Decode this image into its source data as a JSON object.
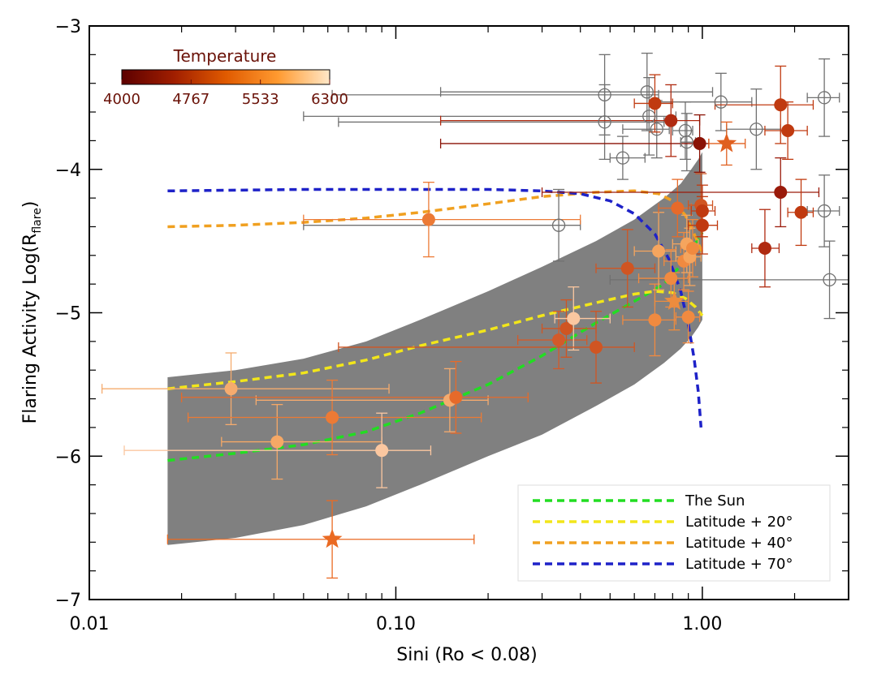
{
  "chart_data": {
    "type": "scatter",
    "title": "",
    "xlabel": "Sini (Ro < 0.08)",
    "ylabel_main": "Flaring Activity Log(R",
    "ylabel_sub": "flare",
    "ylabel_close": ")",
    "x_scale": "log",
    "xlim": [
      0.01,
      3.0
    ],
    "ylim": [
      -7,
      -3
    ],
    "x_ticks": [
      {
        "value": 0.01,
        "label": "0.01"
      },
      {
        "value": 0.1,
        "label": "0.10"
      },
      {
        "value": 1.0,
        "label": "1.00"
      }
    ],
    "y_ticks": [
      {
        "value": -3,
        "label": "−3"
      },
      {
        "value": -4,
        "label": "−4"
      },
      {
        "value": -5,
        "label": "−5"
      },
      {
        "value": -6,
        "label": "−6"
      },
      {
        "value": -7,
        "label": "−7"
      }
    ],
    "colorbar": {
      "title": "Temperature",
      "ticks": [
        "4000",
        "4767",
        "5533",
        "6300"
      ],
      "range": [
        4000,
        6300
      ],
      "colors": [
        "#5c0000",
        "#a01e00",
        "#e05a00",
        "#ff9a30",
        "#ffe8c8"
      ]
    },
    "band": {
      "x": [
        0.018,
        0.03,
        0.05,
        0.08,
        0.12,
        0.2,
        0.3,
        0.45,
        0.6,
        0.75,
        0.85,
        0.92,
        0.97,
        1.0
      ],
      "upper": [
        -5.45,
        -5.4,
        -5.32,
        -5.2,
        -5.05,
        -4.85,
        -4.68,
        -4.5,
        -4.35,
        -4.2,
        -4.1,
        -4.0,
        -3.93,
        -3.88
      ],
      "lower": [
        -6.62,
        -6.57,
        -6.48,
        -6.35,
        -6.2,
        -6.0,
        -5.85,
        -5.65,
        -5.5,
        -5.35,
        -5.25,
        -5.17,
        -5.1,
        -5.05
      ]
    },
    "series": [
      {
        "name": "The Sun",
        "color": "#22dd22",
        "x": [
          0.018,
          0.03,
          0.05,
          0.08,
          0.12,
          0.2,
          0.3,
          0.45,
          0.6,
          0.75,
          0.85,
          0.93,
          1.0
        ],
        "y": [
          -6.03,
          -5.98,
          -5.92,
          -5.83,
          -5.7,
          -5.5,
          -5.3,
          -5.07,
          -4.92,
          -4.8,
          -4.67,
          -4.55,
          -4.44
        ]
      },
      {
        "name": "Latitude + 20°",
        "color": "#f2e61a",
        "x": [
          0.018,
          0.03,
          0.05,
          0.08,
          0.12,
          0.2,
          0.3,
          0.45,
          0.6,
          0.7,
          0.8,
          0.88,
          0.95,
          1.0
        ],
        "y": [
          -5.53,
          -5.48,
          -5.42,
          -5.33,
          -5.23,
          -5.12,
          -5.02,
          -4.93,
          -4.87,
          -4.85,
          -4.86,
          -4.9,
          -4.96,
          -5.02
        ]
      },
      {
        "name": "Latitude + 40°",
        "color": "#f0a020",
        "x": [
          0.018,
          0.03,
          0.05,
          0.08,
          0.12,
          0.2,
          0.3,
          0.45,
          0.6,
          0.72,
          0.8,
          0.88,
          0.94,
          1.0
        ],
        "y": [
          -4.4,
          -4.39,
          -4.37,
          -4.34,
          -4.3,
          -4.24,
          -4.19,
          -4.16,
          -4.15,
          -4.17,
          -4.22,
          -4.32,
          -4.45,
          -4.58
        ]
      },
      {
        "name": "Latitude + 70°",
        "color": "#1e22c8",
        "x": [
          0.018,
          0.05,
          0.1,
          0.2,
          0.3,
          0.4,
          0.5,
          0.6,
          0.7,
          0.78,
          0.85,
          0.9,
          0.94,
          0.97,
          0.99
        ],
        "y": [
          -4.15,
          -4.14,
          -4.14,
          -4.14,
          -4.15,
          -4.17,
          -4.22,
          -4.31,
          -4.45,
          -4.63,
          -4.85,
          -5.08,
          -5.32,
          -5.55,
          -5.8
        ]
      }
    ],
    "points": [
      {
        "x": 0.029,
        "y": -5.53,
        "xlo": 0.011,
        "xhi": 0.095,
        "yerr": 0.25,
        "color": "#f5ab6e",
        "shape": "circle"
      },
      {
        "x": 0.041,
        "y": -5.9,
        "xlo": 0.027,
        "xhi": 0.09,
        "yerr": 0.26,
        "color": "#f5a866",
        "shape": "circle"
      },
      {
        "x": 0.062,
        "y": -5.73,
        "xlo": 0.021,
        "xhi": 0.19,
        "yerr": 0.26,
        "color": "#ec7a35",
        "shape": "circle"
      },
      {
        "x": 0.09,
        "y": -5.96,
        "xlo": 0.013,
        "xhi": 0.13,
        "yerr": 0.26,
        "color": "#fbc7a0",
        "shape": "circle"
      },
      {
        "x": 0.062,
        "y": -6.58,
        "xlo": 0.018,
        "xhi": 0.18,
        "yerr": 0.27,
        "color": "#ea6a22",
        "shape": "star"
      },
      {
        "x": 0.128,
        "y": -4.35,
        "xlo": 0.05,
        "xhi": 0.4,
        "yerr": 0.26,
        "color": "#ec7a35",
        "shape": "circle"
      },
      {
        "x": 0.15,
        "y": -5.61,
        "xlo": 0.035,
        "xhi": 0.2,
        "yerr": 0.22,
        "color": "#f5ab6e",
        "shape": "circle"
      },
      {
        "x": 0.157,
        "y": -5.59,
        "xlo": 0.02,
        "xhi": 0.27,
        "yerr": 0.25,
        "color": "#e66a2a",
        "shape": "circle"
      },
      {
        "x": 0.34,
        "y": -5.19,
        "xlo": 0.25,
        "xhi": 0.42,
        "yerr": 0.2,
        "color": "#d35a2a",
        "shape": "circle"
      },
      {
        "x": 0.36,
        "y": -5.11,
        "xlo": 0.3,
        "xhi": 0.45,
        "yerr": 0.2,
        "color": "#d05522",
        "shape": "circle"
      },
      {
        "x": 0.38,
        "y": -5.04,
        "xlo": 0.33,
        "xhi": 0.5,
        "yerr": 0.22,
        "color": "#fbc7a0",
        "shape": "circle"
      },
      {
        "x": 0.45,
        "y": -5.24,
        "xlo": 0.065,
        "xhi": 0.6,
        "yerr": 0.25,
        "color": "#d05522",
        "shape": "circle"
      },
      {
        "x": 0.57,
        "y": -4.69,
        "xlo": 0.45,
        "xhi": 0.7,
        "yerr": 0.27,
        "color": "#d05522",
        "shape": "circle"
      },
      {
        "x": 0.7,
        "y": -5.05,
        "xlo": 0.55,
        "xhi": 0.82,
        "yerr": 0.25,
        "color": "#f08a40",
        "shape": "circle"
      },
      {
        "x": 0.72,
        "y": -4.57,
        "xlo": 0.6,
        "xhi": 0.82,
        "yerr": 0.27,
        "color": "#f5a55e",
        "shape": "circle"
      },
      {
        "x": 0.79,
        "y": -4.76,
        "xlo": 0.62,
        "xhi": 0.9,
        "yerr": 0.2,
        "color": "#f08a40",
        "shape": "circle"
      },
      {
        "x": 0.81,
        "y": -4.92,
        "xlo": 0.7,
        "xhi": 0.9,
        "yerr": 0.2,
        "color": "#ed8c3e",
        "shape": "star"
      },
      {
        "x": 0.83,
        "y": -4.27,
        "xlo": 0.72,
        "xhi": 0.92,
        "yerr": 0.2,
        "color": "#e66a2a",
        "shape": "circle"
      },
      {
        "x": 0.87,
        "y": -4.64,
        "xlo": 0.75,
        "xhi": 0.95,
        "yerr": 0.2,
        "color": "#f08a40",
        "shape": "circle"
      },
      {
        "x": 0.89,
        "y": -4.52,
        "xlo": 0.8,
        "xhi": 0.97,
        "yerr": 0.2,
        "color": "#f5a55e",
        "shape": "circle"
      },
      {
        "x": 0.91,
        "y": -4.61,
        "xlo": 0.82,
        "xhi": 0.99,
        "yerr": 0.2,
        "color": "#f5a55e",
        "shape": "circle"
      },
      {
        "x": 0.9,
        "y": -5.03,
        "xlo": 0.82,
        "xhi": 0.98,
        "yerr": 0.18,
        "color": "#f08a40",
        "shape": "circle"
      },
      {
        "x": 0.93,
        "y": -4.55,
        "xlo": 0.85,
        "xhi": 1.0,
        "yerr": 0.2,
        "color": "#f08a40",
        "shape": "circle"
      },
      {
        "x": 0.99,
        "y": -4.25,
        "xlo": 0.9,
        "xhi": 1.08,
        "yerr": 0.22,
        "color": "#d05522",
        "shape": "circle"
      },
      {
        "x": 1.0,
        "y": -4.39,
        "xlo": 0.9,
        "xhi": 1.12,
        "yerr": 0.2,
        "color": "#c03a10",
        "shape": "circle"
      },
      {
        "x": 1.0,
        "y": -4.29,
        "xlo": 0.92,
        "xhi": 1.1,
        "yerr": 0.18,
        "color": "#c03a10",
        "shape": "circle"
      },
      {
        "x": 0.7,
        "y": -3.54,
        "xlo": 0.6,
        "xhi": 0.8,
        "yerr": 0.2,
        "color": "#c03a10",
        "shape": "circle"
      },
      {
        "x": 0.79,
        "y": -3.66,
        "xlo": 0.14,
        "xhi": 0.98,
        "yerr": 0.25,
        "color": "#b02a10",
        "shape": "circle"
      },
      {
        "x": 0.98,
        "y": -3.82,
        "xlo": 0.14,
        "xhi": 1.05,
        "yerr": 0.2,
        "color": "#8a1205",
        "shape": "circle"
      },
      {
        "x": 1.2,
        "y": -3.82,
        "xlo": 1.05,
        "xhi": 1.38,
        "yerr": 0.15,
        "color": "#e06020",
        "shape": "star"
      },
      {
        "x": 1.8,
        "y": -3.55,
        "xlo": 1.1,
        "xhi": 2.3,
        "yerr": 0.27,
        "color": "#c03a10",
        "shape": "circle"
      },
      {
        "x": 1.9,
        "y": -3.73,
        "xlo": 1.6,
        "xhi": 2.2,
        "yerr": 0.2,
        "color": "#c03a10",
        "shape": "circle"
      },
      {
        "x": 1.8,
        "y": -4.16,
        "xlo": 0.3,
        "xhi": 2.4,
        "yerr": 0.24,
        "color": "#9a1a0a",
        "shape": "circle"
      },
      {
        "x": 2.1,
        "y": -4.3,
        "xlo": 1.9,
        "xhi": 2.3,
        "yerr": 0.23,
        "color": "#c03a10",
        "shape": "circle"
      },
      {
        "x": 1.6,
        "y": -4.55,
        "xlo": 1.45,
        "xhi": 1.78,
        "yerr": 0.27,
        "color": "#b02a10",
        "shape": "circle"
      }
    ],
    "open_points": [
      {
        "x": 0.48,
        "y": -3.48,
        "xlo": 0.062,
        "xhi": 0.72,
        "yerr": 0.28
      },
      {
        "x": 0.66,
        "y": -3.46,
        "xlo": 0.14,
        "xhi": 1.08,
        "yerr": 0.27
      },
      {
        "x": 0.67,
        "y": -3.63,
        "xlo": 0.05,
        "xhi": 0.82,
        "yerr": 0.27
      },
      {
        "x": 0.48,
        "y": -3.67,
        "xlo": 0.065,
        "xhi": 0.75,
        "yerr": 0.26
      },
      {
        "x": 0.55,
        "y": -3.92,
        "xlo": 0.5,
        "xhi": 0.65,
        "yerr": 0.15
      },
      {
        "x": 0.71,
        "y": -3.72,
        "xlo": 0.55,
        "xhi": 0.78,
        "yerr": 0.2
      },
      {
        "x": 0.88,
        "y": -3.73,
        "xlo": 0.8,
        "xhi": 0.93,
        "yerr": 0.2
      },
      {
        "x": 0.89,
        "y": -3.81,
        "xlo": 0.85,
        "xhi": 0.95,
        "yerr": 0.2
      },
      {
        "x": 1.15,
        "y": -3.53,
        "xlo": 0.72,
        "xhi": 1.45,
        "yerr": 0.2
      },
      {
        "x": 1.5,
        "y": -3.72,
        "xlo": 1.2,
        "xhi": 1.8,
        "yerr": 0.28
      },
      {
        "x": 0.34,
        "y": -4.39,
        "xlo": 0.05,
        "xhi": 0.4,
        "yerr": 0.25
      },
      {
        "x": 2.5,
        "y": -3.5,
        "xlo": 2.2,
        "xhi": 2.8,
        "yerr": 0.27
      },
      {
        "x": 2.5,
        "y": -4.29,
        "xlo": 2.2,
        "xhi": 2.8,
        "yerr": 0.25
      },
      {
        "x": 2.6,
        "y": -4.77,
        "xlo": 0.5,
        "xhi": 3.0,
        "yerr": 0.27
      }
    ],
    "legend_position": "bottom-right",
    "grid": false
  }
}
